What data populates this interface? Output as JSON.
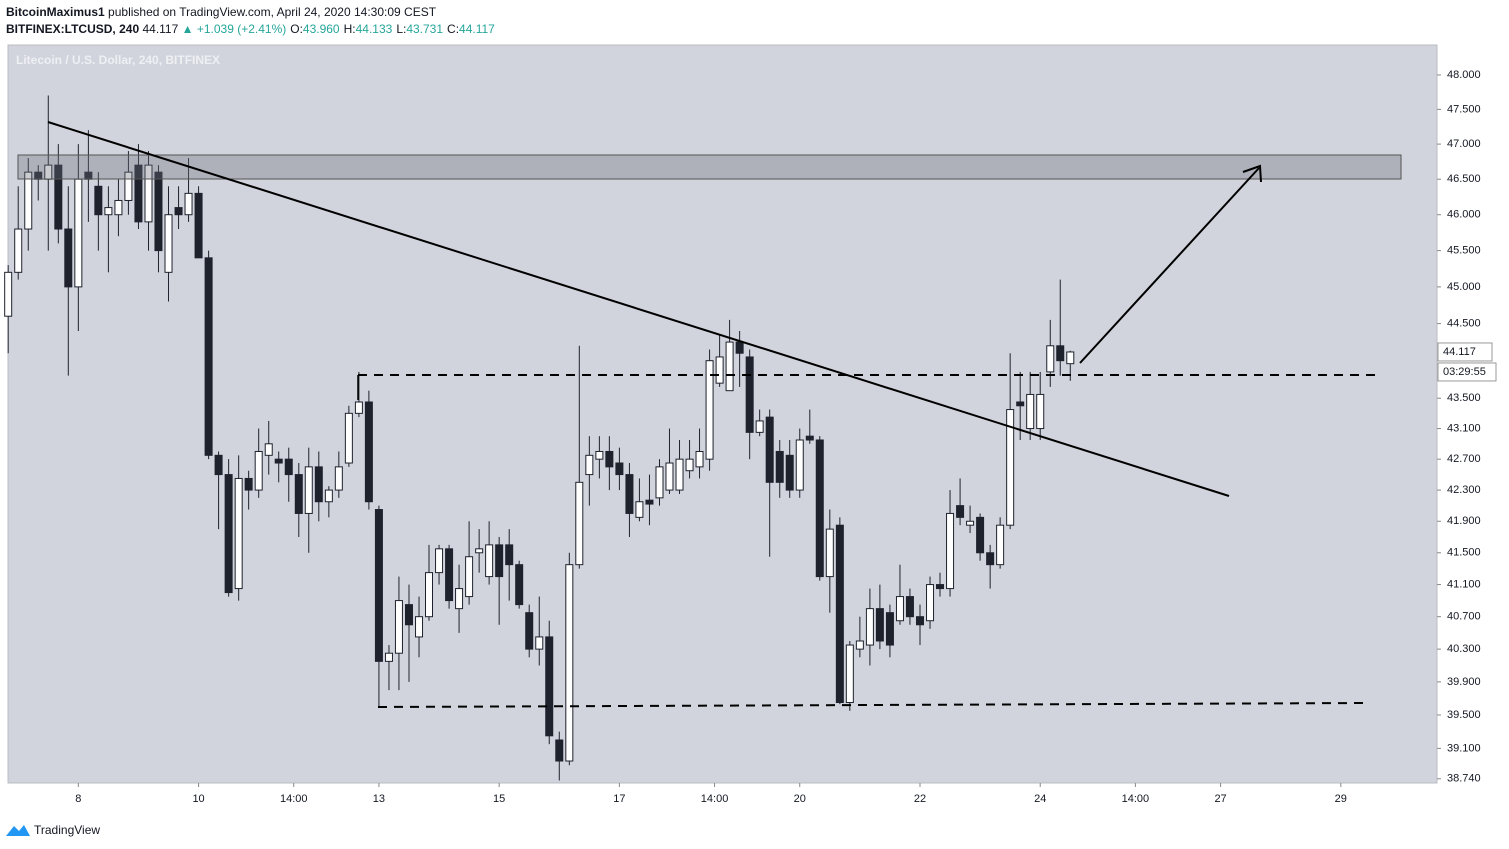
{
  "chart_data": {
    "type": "candlestick",
    "header": {
      "author": "BitcoinMaximus1",
      "published": "published on TradingView.com, April 24, 2020 14:30:09 CEST",
      "symbol": "BITFINEX:LTCUSD, 240",
      "last": "44.117",
      "change": "▲ +1.039 (+2.41%)",
      "legend": [
        {
          "label": "O:",
          "value": "43.960"
        },
        {
          "label": "H:",
          "value": "44.133"
        },
        {
          "label": "L:",
          "value": "43.731"
        },
        {
          "label": "C:",
          "value": "44.117"
        }
      ]
    },
    "title": "Litecoin / U.S. Dollar, 240, BITFINEX",
    "countdown": "03:29:55",
    "footer": "TradingView",
    "log_scale": true,
    "grid": false,
    "up_color": "#ffffff",
    "down_color": "#1e222d",
    "outline_color": "#1e222d",
    "xlim": [
      6.83,
      30.6
    ],
    "xticks": [
      8,
      10,
      {
        "value": 11.583,
        "label": "14:00"
      },
      13,
      15,
      17,
      {
        "value": 18.583,
        "label": "14:00"
      },
      20,
      22,
      24,
      {
        "value": 25.583,
        "label": "14:00"
      },
      27,
      29
    ],
    "ylim": [
      38.69,
      48.44
    ],
    "yticks": [
      {
        "value": 48,
        "label": "48.000"
      },
      {
        "value": 47.5,
        "label": "47.500"
      },
      {
        "value": 47,
        "label": "47.000"
      },
      {
        "value": 46.5,
        "label": "46.500"
      },
      {
        "value": 46,
        "label": "46.000"
      },
      {
        "value": 45.5,
        "label": "45.500"
      },
      {
        "value": 45,
        "label": "45.000"
      },
      {
        "value": 44.5,
        "label": "44.500"
      },
      {
        "value": 43.5,
        "label": "43.500"
      },
      {
        "value": 43.1,
        "label": "43.100"
      },
      {
        "value": 42.7,
        "label": "42.700"
      },
      {
        "value": 42.3,
        "label": "42.300"
      },
      {
        "value": 41.9,
        "label": "41.900"
      },
      {
        "value": 41.5,
        "label": "41.500"
      },
      {
        "value": 41.1,
        "label": "41.100"
      },
      {
        "value": 40.7,
        "label": "40.700"
      },
      {
        "value": 40.3,
        "label": "40.300"
      },
      {
        "value": 39.9,
        "label": "39.900"
      },
      {
        "value": 39.5,
        "label": "39.500"
      },
      {
        "value": 39.1,
        "label": "39.100"
      },
      {
        "value": 38.74,
        "label": "38.740"
      }
    ],
    "x": [
      6.833,
      7,
      7.167,
      7.333,
      7.5,
      7.667,
      7.833,
      8,
      8.167,
      8.333,
      8.5,
      8.667,
      8.833,
      9,
      9.167,
      9.333,
      9.5,
      9.667,
      9.833,
      10,
      10.167,
      10.333,
      10.5,
      10.667,
      10.833,
      11,
      11.167,
      11.333,
      11.5,
      11.667,
      11.833,
      12,
      12.167,
      12.333,
      12.5,
      12.667,
      12.833,
      13,
      13.167,
      13.333,
      13.5,
      13.667,
      13.833,
      14,
      14.167,
      14.333,
      14.5,
      14.667,
      14.833,
      15,
      15.167,
      15.333,
      15.5,
      15.667,
      15.833,
      16,
      16.167,
      16.333,
      16.5,
      16.667,
      16.833,
      17,
      17.167,
      17.333,
      17.5,
      17.667,
      17.833,
      18,
      18.167,
      18.333,
      18.5,
      18.667,
      18.833,
      19,
      19.167,
      19.333,
      19.5,
      19.667,
      19.833,
      20,
      20.167,
      20.333,
      20.5,
      20.667,
      20.833,
      21,
      21.167,
      21.333,
      21.5,
      21.667,
      21.833,
      22,
      22.167,
      22.333,
      22.5,
      22.667,
      22.833,
      23,
      23.167,
      23.333,
      23.5,
      23.667,
      23.833,
      24,
      24.167,
      24.333,
      24.5
    ],
    "open": [
      44.6,
      45.2,
      45.8,
      46.6,
      46.5,
      46.7,
      45.8,
      45.0,
      46.6,
      46.4,
      46.0,
      46.0,
      46.2,
      46.7,
      45.9,
      46.6,
      45.2,
      46.1,
      46.0,
      46.3,
      45.4,
      42.75,
      42.5,
      41.05,
      42.45,
      42.3,
      42.75,
      42.7,
      42.7,
      42.5,
      42.0,
      42.6,
      42.15,
      42.3,
      42.65,
      43.3,
      43.45,
      42.05,
      40.15,
      40.25,
      40.85,
      40.45,
      40.7,
      41.25,
      41.55,
      40.8,
      40.95,
      41.5,
      41.2,
      41.6,
      41.6,
      41.35,
      40.75,
      40.3,
      40.45,
      39.2,
      38.95,
      41.35,
      42.5,
      42.7,
      42.8,
      42.65,
      42.5,
      41.95,
      42.17,
      42.2,
      42.3,
      42.3,
      42.55,
      42.6,
      42.7,
      43.7,
      43.6,
      44.25,
      44.05,
      43.05,
      43.25,
      42.8,
      42.75,
      42.3,
      43.0,
      42.95,
      41.2,
      41.85,
      39.65,
      40.3,
      40.35,
      40.8,
      40.75,
      40.65,
      40.95,
      40.7,
      40.65,
      41.1,
      41.05,
      42.1,
      41.85,
      41.95,
      41.5,
      41.35,
      41.85,
      43.45,
      43.1,
      43.1,
      43.85,
      44.2,
      43.96
    ],
    "high": [
      45.3,
      46.4,
      46.8,
      46.7,
      47.7,
      47.0,
      46.4,
      47.0,
      47.2,
      46.6,
      46.4,
      46.5,
      46.9,
      47.0,
      46.9,
      46.7,
      46.4,
      46.4,
      46.8,
      46.4,
      45.5,
      42.8,
      42.7,
      42.75,
      42.55,
      43.1,
      43.2,
      42.8,
      42.85,
      42.65,
      42.85,
      42.8,
      42.35,
      42.8,
      43.4,
      43.85,
      43.6,
      42.1,
      40.35,
      41.2,
      41.1,
      40.95,
      41.6,
      41.6,
      41.6,
      41.35,
      41.9,
      41.8,
      41.9,
      41.7,
      41.8,
      41.4,
      40.85,
      40.95,
      40.65,
      39.3,
      41.5,
      44.2,
      43.0,
      43.0,
      43.0,
      42.85,
      42.65,
      42.45,
      42.5,
      42.7,
      43.1,
      42.95,
      42.95,
      43.1,
      44.15,
      44.35,
      44.55,
      44.4,
      44.15,
      43.35,
      43.35,
      42.95,
      42.95,
      43.1,
      43.35,
      43.0,
      42.05,
      41.95,
      40.4,
      40.7,
      41.05,
      41.1,
      40.85,
      41.35,
      41.05,
      40.85,
      41.2,
      41.25,
      42.3,
      42.45,
      42.1,
      42.0,
      41.6,
      41.95,
      44.1,
      43.85,
      43.85,
      43.85,
      44.55,
      45.1,
      44.133
    ],
    "low": [
      44.1,
      45.1,
      45.5,
      46.2,
      45.5,
      45.6,
      43.8,
      44.4,
      45.9,
      45.5,
      45.2,
      45.7,
      46.0,
      45.8,
      45.5,
      45.2,
      44.8,
      45.8,
      45.9,
      45.4,
      42.7,
      41.8,
      40.95,
      40.9,
      42.05,
      42.2,
      42.5,
      42.4,
      42.15,
      41.7,
      41.5,
      41.9,
      41.95,
      42.2,
      42.6,
      43.25,
      42.05,
      39.6,
      39.8,
      39.8,
      39.9,
      40.2,
      40.65,
      41.1,
      40.8,
      40.5,
      40.85,
      41.25,
      41.1,
      40.6,
      40.9,
      40.8,
      40.2,
      40.1,
      39.15,
      38.72,
      38.9,
      41.3,
      42.1,
      42.45,
      42.3,
      42.3,
      41.7,
      41.9,
      41.85,
      42.1,
      42.25,
      42.25,
      42.45,
      42.45,
      42.55,
      43.65,
      43.6,
      43.65,
      42.7,
      43.0,
      41.45,
      42.2,
      42.2,
      42.2,
      42.9,
      41.15,
      40.75,
      39.63,
      39.55,
      40.2,
      40.1,
      40.3,
      40.2,
      40.6,
      40.6,
      40.35,
      40.55,
      40.95,
      40.95,
      41.85,
      41.75,
      41.4,
      41.05,
      41.3,
      41.8,
      42.95,
      42.95,
      42.95,
      43.65,
      43.8,
      43.731
    ],
    "close": [
      45.2,
      45.8,
      46.6,
      46.5,
      46.7,
      45.8,
      45.0,
      46.5,
      46.5,
      46.0,
      46.1,
      46.2,
      46.6,
      45.9,
      46.7,
      45.5,
      46.0,
      46.0,
      46.3,
      45.4,
      42.75,
      42.5,
      41.0,
      42.45,
      42.3,
      42.8,
      42.9,
      42.65,
      42.5,
      42.0,
      42.6,
      42.15,
      42.3,
      42.6,
      43.3,
      43.45,
      42.15,
      40.15,
      40.25,
      40.9,
      40.6,
      40.7,
      41.25,
      41.55,
      40.9,
      41.05,
      41.45,
      41.55,
      41.6,
      41.2,
      41.35,
      40.85,
      40.3,
      40.45,
      39.25,
      38.95,
      41.35,
      42.4,
      42.75,
      42.8,
      42.6,
      42.5,
      42.0,
      42.15,
      42.12,
      42.6,
      42.65,
      42.7,
      42.7,
      42.8,
      44.0,
      44.05,
      44.25,
      44.1,
      43.05,
      43.2,
      42.4,
      42.4,
      42.3,
      42.95,
      42.95,
      41.2,
      41.8,
      39.65,
      40.35,
      40.4,
      40.8,
      40.4,
      40.35,
      40.95,
      40.7,
      40.6,
      41.1,
      41.05,
      42.0,
      41.95,
      41.9,
      41.5,
      41.35,
      41.85,
      43.35,
      43.4,
      43.55,
      43.55,
      44.2,
      44.0,
      44.117
    ]
  }
}
